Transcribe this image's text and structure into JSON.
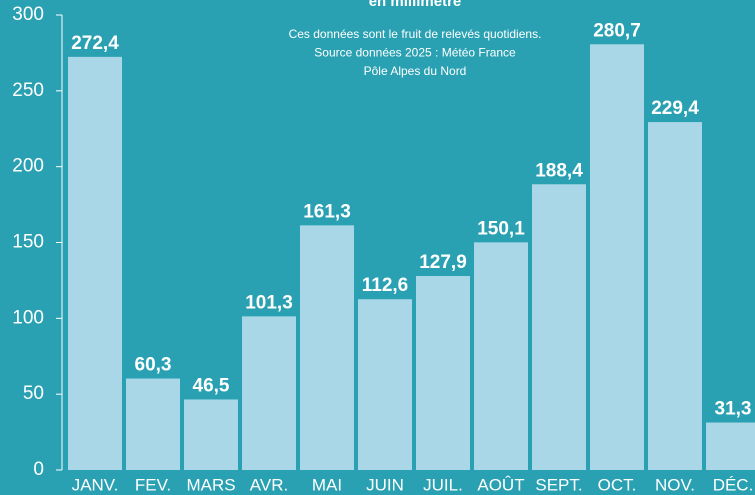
{
  "chart_data": {
    "type": "bar",
    "title": "en millimètre",
    "annotations": [
      "Ces données sont le fruit de relevés quotidiens.",
      "Source données 2025 : Météo France",
      "Pôle Alpes du Nord"
    ],
    "categories": [
      "JANV.",
      "FEV.",
      "MARS",
      "AVR.",
      "MAI",
      "JUIN",
      "JUIL.",
      "AOÛT",
      "SEPT.",
      "OCT.",
      "NOV.",
      "DÉC."
    ],
    "values": [
      272.4,
      60.3,
      46.5,
      101.3,
      161.3,
      112.6,
      127.9,
      150.1,
      188.4,
      280.7,
      229.4,
      31.3
    ],
    "value_labels": [
      "272,4",
      "60,3",
      "46,5",
      "101,3",
      "161,3",
      "112,6",
      "127,9",
      "150,1",
      "188,4",
      "280,7",
      "229,4",
      "31,3"
    ],
    "color": "#a9d7e7",
    "ylim": [
      0,
      300
    ],
    "yticks": [
      0,
      50,
      100,
      150,
      200,
      250,
      300
    ],
    "grid": false
  }
}
